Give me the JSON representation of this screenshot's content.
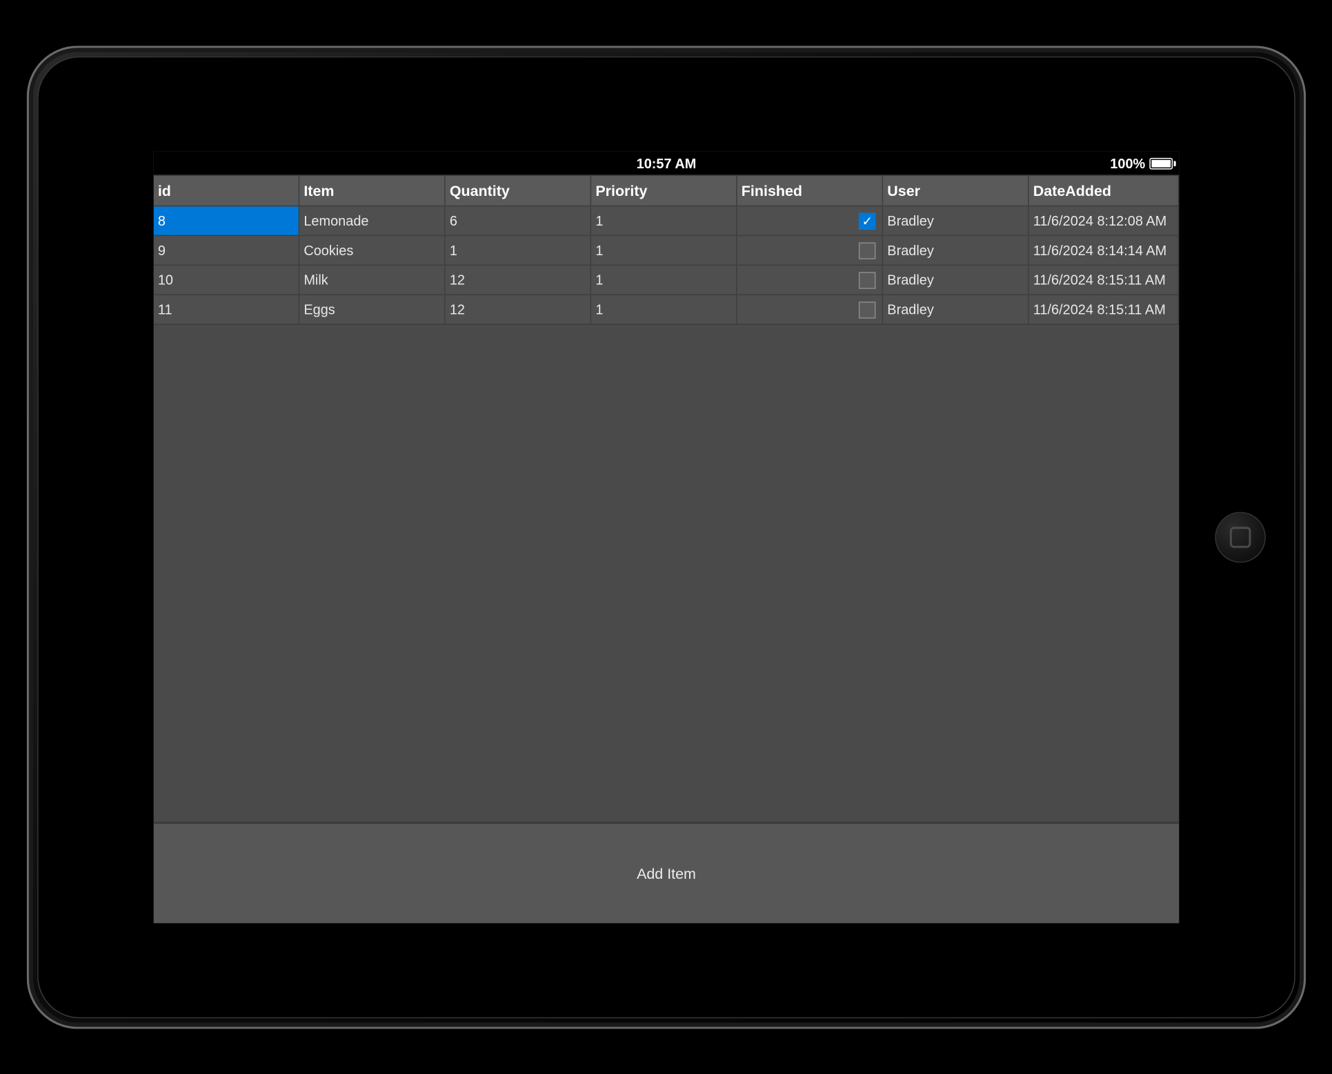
{
  "status_bar": {
    "time": "10:57 AM",
    "battery_text": "100%"
  },
  "colors": {
    "page_bg": "#000000",
    "screen_bg": "#4a4a4a",
    "row_bg": "#4f4f4f",
    "header_bg": "#5a5a5a",
    "selected_bg": "#0078d7",
    "border": "#3e3e3e",
    "text": "#e8e8e8",
    "header_text": "#ffffff"
  },
  "grid": {
    "columns": [
      {
        "key": "id",
        "label": "id"
      },
      {
        "key": "item",
        "label": "Item"
      },
      {
        "key": "quantity",
        "label": "Quantity"
      },
      {
        "key": "priority",
        "label": "Priority"
      },
      {
        "key": "finished",
        "label": "Finished"
      },
      {
        "key": "user",
        "label": "User"
      },
      {
        "key": "dateAdded",
        "label": "DateAdded"
      }
    ],
    "selected_row_index": 0,
    "selected_col_key": "id",
    "rows": [
      {
        "id": "8",
        "item": "Lemonade",
        "quantity": "6",
        "priority": "1",
        "finished": true,
        "user": "Bradley",
        "dateAdded": "11/6/2024 8:12:08 AM"
      },
      {
        "id": "9",
        "item": "Cookies",
        "quantity": "1",
        "priority": "1",
        "finished": false,
        "user": "Bradley",
        "dateAdded": "11/6/2024 8:14:14 AM"
      },
      {
        "id": "10",
        "item": "Milk",
        "quantity": "12",
        "priority": "1",
        "finished": false,
        "user": "Bradley",
        "dateAdded": "11/6/2024 8:15:11 AM"
      },
      {
        "id": "11",
        "item": "Eggs",
        "quantity": "12",
        "priority": "1",
        "finished": false,
        "user": "Bradley",
        "dateAdded": "11/6/2024 8:15:11 AM"
      }
    ]
  },
  "footer": {
    "add_item_label": "Add Item"
  }
}
